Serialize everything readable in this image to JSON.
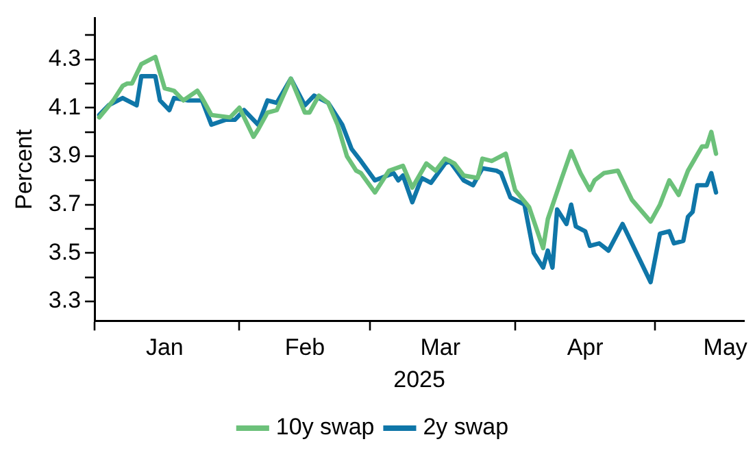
{
  "chart_data": {
    "type": "line",
    "xlabel": "2025",
    "ylabel": "Percent",
    "xlim": [
      "2025-01-01",
      "2025-05-20"
    ],
    "xticks": [
      {
        "value": "2025-01-01",
        "label": null
      },
      {
        "value": "2025-01-16",
        "label": "Jan"
      },
      {
        "value": "2025-02-01",
        "label": null
      },
      {
        "value": "2025-02-15",
        "label": "Feb"
      },
      {
        "value": "2025-03-01",
        "label": null
      },
      {
        "value": "2025-03-16",
        "label": "Mar"
      },
      {
        "value": "2025-04-01",
        "label": null
      },
      {
        "value": "2025-04-16",
        "label": "Apr"
      },
      {
        "value": "2025-05-01",
        "label": null
      },
      {
        "value": "2025-05-16",
        "label": "May"
      }
    ],
    "ylim": [
      3.22,
      4.47
    ],
    "yticks": [
      3.3,
      {
        "value": 3.4,
        "label": null
      },
      3.5,
      {
        "value": 3.6,
        "label": null
      },
      3.7,
      {
        "value": 3.8,
        "label": null
      },
      3.9,
      {
        "value": 4.0,
        "label": null
      },
      4.1,
      {
        "value": 4.2,
        "label": null
      },
      4.3,
      {
        "value": 4.4,
        "label": null
      }
    ],
    "grid": false,
    "legend": "bottom",
    "marker": "none",
    "line_style": "solid",
    "series": [
      {
        "name": "10y swap",
        "color": "#6cc17a",
        "x": [
          "2025-01-02",
          "2025-01-05",
          "2025-01-07",
          "2025-01-08",
          "2025-01-09",
          "2025-01-11",
          "2025-01-14",
          "2025-01-16",
          "2025-01-18",
          "2025-01-20",
          "2025-01-23",
          "2025-01-24",
          "2025-01-26",
          "2025-01-30",
          "2025-02-01",
          "2025-02-04",
          "2025-02-05",
          "2025-02-07",
          "2025-02-09",
          "2025-02-12",
          "2025-02-15",
          "2025-02-16",
          "2025-02-18",
          "2025-02-20",
          "2025-02-22",
          "2025-02-24",
          "2025-02-26",
          "2025-02-27",
          "2025-03-02",
          "2025-03-05",
          "2025-03-08",
          "2025-03-10",
          "2025-03-13",
          "2025-03-15",
          "2025-03-17",
          "2025-03-19",
          "2025-03-21",
          "2025-03-24",
          "2025-03-25",
          "2025-03-27",
          "2025-03-30",
          "2025-04-01",
          "2025-04-04",
          "2025-04-07",
          "2025-04-08",
          "2025-04-11",
          "2025-04-13",
          "2025-04-15",
          "2025-04-17",
          "2025-04-18",
          "2025-04-20",
          "2025-04-23",
          "2025-04-26",
          "2025-04-30",
          "2025-05-02",
          "2025-05-04",
          "2025-05-06",
          "2025-05-08",
          "2025-05-11",
          "2025-05-12",
          "2025-05-13",
          "2025-05-14"
        ],
        "values": [
          4.06,
          4.13,
          4.19,
          4.2,
          4.2,
          4.28,
          4.31,
          4.18,
          4.17,
          4.13,
          4.17,
          4.14,
          4.07,
          4.06,
          4.1,
          3.98,
          4.01,
          4.08,
          4.09,
          4.22,
          4.08,
          4.08,
          4.15,
          4.12,
          4.03,
          3.9,
          3.84,
          3.83,
          3.75,
          3.84,
          3.86,
          3.77,
          3.87,
          3.84,
          3.89,
          3.87,
          3.82,
          3.81,
          3.89,
          3.88,
          3.91,
          3.76,
          3.69,
          3.52,
          3.64,
          3.81,
          3.92,
          3.83,
          3.76,
          3.8,
          3.83,
          3.84,
          3.72,
          3.63,
          3.7,
          3.8,
          3.74,
          3.84,
          3.94,
          3.94,
          4.0,
          3.91
        ]
      },
      {
        "name": "2y swap",
        "color": "#0f76a8",
        "x": [
          "2025-01-02",
          "2025-01-04",
          "2025-01-07",
          "2025-01-10",
          "2025-01-11",
          "2025-01-14",
          "2025-01-15",
          "2025-01-17",
          "2025-01-18",
          "2025-01-21",
          "2025-01-24",
          "2025-01-26",
          "2025-01-29",
          "2025-01-31",
          "2025-02-02",
          "2025-02-05",
          "2025-02-07",
          "2025-02-09",
          "2025-02-12",
          "2025-02-15",
          "2025-02-17",
          "2025-02-20",
          "2025-02-23",
          "2025-02-25",
          "2025-02-27",
          "2025-03-02",
          "2025-03-06",
          "2025-03-07",
          "2025-03-08",
          "2025-03-10",
          "2025-03-12",
          "2025-03-14",
          "2025-03-17",
          "2025-03-18",
          "2025-03-21",
          "2025-03-23",
          "2025-03-25",
          "2025-03-28",
          "2025-03-29",
          "2025-03-31",
          "2025-04-03",
          "2025-04-05",
          "2025-04-07",
          "2025-04-08",
          "2025-04-09",
          "2025-04-10",
          "2025-04-12",
          "2025-04-13",
          "2025-04-14",
          "2025-04-16",
          "2025-04-17",
          "2025-04-19",
          "2025-04-21",
          "2025-04-24",
          "2025-04-27",
          "2025-04-30",
          "2025-05-02",
          "2025-05-04",
          "2025-05-05",
          "2025-05-07",
          "2025-05-08",
          "2025-05-09",
          "2025-05-10",
          "2025-05-12",
          "2025-05-13",
          "2025-05-14"
        ],
        "values": [
          4.07,
          4.11,
          4.14,
          4.11,
          4.23,
          4.23,
          4.13,
          4.09,
          4.14,
          4.13,
          4.13,
          4.03,
          4.05,
          4.05,
          4.09,
          4.03,
          4.13,
          4.12,
          4.22,
          4.11,
          4.15,
          4.12,
          4.03,
          3.93,
          3.88,
          3.8,
          3.83,
          3.8,
          3.82,
          3.71,
          3.81,
          3.79,
          3.87,
          3.88,
          3.8,
          3.78,
          3.85,
          3.84,
          3.83,
          3.73,
          3.7,
          3.5,
          3.44,
          3.51,
          3.44,
          3.68,
          3.62,
          3.7,
          3.61,
          3.59,
          3.53,
          3.54,
          3.51,
          3.62,
          3.5,
          3.38,
          3.58,
          3.59,
          3.54,
          3.55,
          3.65,
          3.67,
          3.78,
          3.78,
          3.83,
          3.75
        ]
      }
    ]
  }
}
